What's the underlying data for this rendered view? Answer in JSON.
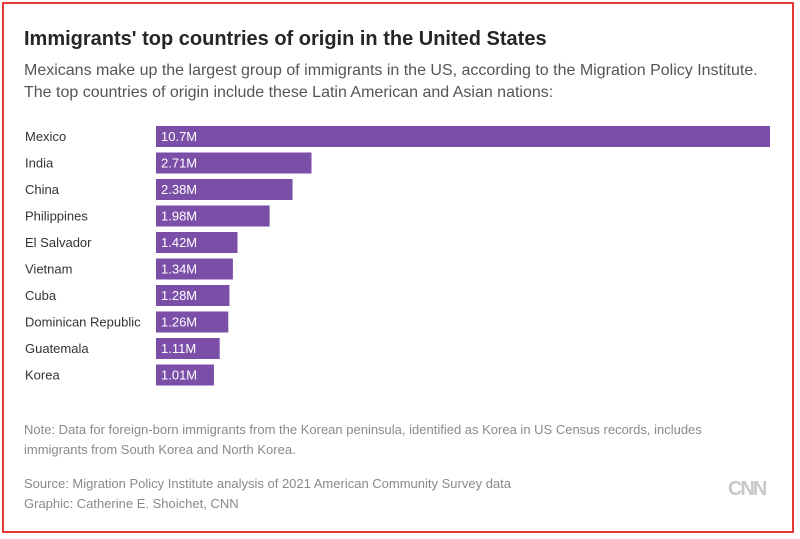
{
  "header": {
    "title": "Immigrants' top countries of origin in the United States",
    "subtitle": "Mexicans make up the largest group of immigrants in the US, according to the Migration Policy Institute. The top countries of origin include these Latin American and Asian nations:"
  },
  "footer": {
    "note": "Note: Data for foreign-born immigrants from the Korean peninsula, identified as Korea in US Census records, includes immigrants from South Korea and North Korea.",
    "source": "Source: Migration Policy Institute analysis of 2021 American Community Survey data",
    "credit": "Graphic: Catherine E. Shoichet, CNN",
    "logo": "CNN"
  },
  "colors": {
    "bar": "#7b4ea8",
    "bar_label": "#ffffff",
    "category_label": "#333333"
  },
  "chart_data": {
    "type": "bar",
    "orientation": "horizontal",
    "title": "Immigrants' top countries of origin in the United States",
    "xlabel": "",
    "ylabel": "",
    "unit": "millions",
    "categories": [
      "Mexico",
      "India",
      "China",
      "Philippines",
      "El Salvador",
      "Vietnam",
      "Cuba",
      "Dominican Republic",
      "Guatemala",
      "Korea"
    ],
    "values": [
      10.7,
      2.71,
      2.38,
      1.98,
      1.42,
      1.34,
      1.28,
      1.26,
      1.11,
      1.01
    ],
    "value_labels": [
      "10.7M",
      "2.71M",
      "2.38M",
      "1.98M",
      "1.42M",
      "1.34M",
      "1.28M",
      "1.26M",
      "1.11M",
      "1.01M"
    ],
    "xlim": [
      0,
      10.7
    ],
    "grid": false,
    "legend": "none"
  }
}
